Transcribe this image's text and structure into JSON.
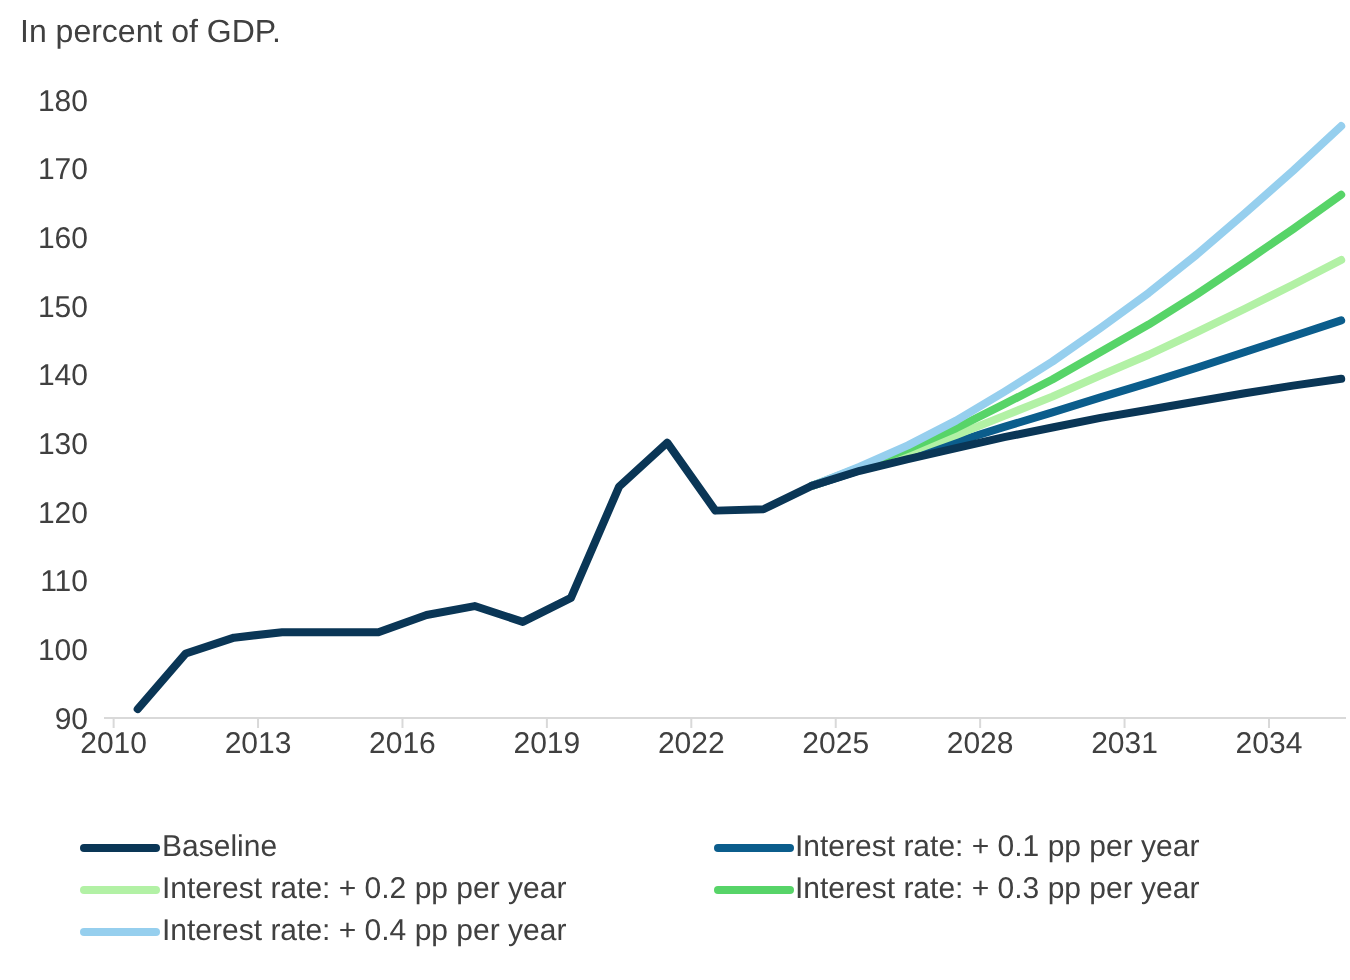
{
  "chart_data": {
    "type": "line",
    "ylabel": "In percent of GDP.",
    "xlim": [
      2009.8,
      2035.6
    ],
    "xticks": [
      2010,
      2013,
      2016,
      2019,
      2022,
      2025,
      2028,
      2031,
      2034
    ],
    "ylim": [
      90,
      180
    ],
    "yticks": [
      90,
      100,
      110,
      120,
      130,
      140,
      150,
      160,
      170,
      180
    ],
    "grid": false,
    "legend": "bottom",
    "marker": "none",
    "line_style": "solid",
    "series": [
      {
        "name": "Interest rate: + 0.1 pp per year",
        "color": "#0b5d8c",
        "x": [
          2024.5,
          2025.5,
          2026.5,
          2027.5,
          2028.5,
          2029.5,
          2030.5,
          2031.5,
          2032.5,
          2033.5,
          2034.5,
          2035.5
        ],
        "values": [
          123.8,
          126.1,
          128.2,
          130.2,
          132.4,
          134.5,
          136.7,
          138.8,
          141.0,
          143.3,
          145.6,
          147.9
        ]
      },
      {
        "name": "Interest rate: + 0.2 pp per year",
        "color": "#b2f1a5",
        "x": [
          2024.5,
          2025.5,
          2026.5,
          2027.5,
          2028.5,
          2029.5,
          2030.5,
          2031.5,
          2032.5,
          2033.5,
          2034.5,
          2035.5
        ],
        "values": [
          123.8,
          126.3,
          128.7,
          131.2,
          134.0,
          136.8,
          139.9,
          142.9,
          146.2,
          149.6,
          153.1,
          156.7
        ]
      },
      {
        "name": "Interest rate: + 0.3 pp per year",
        "color": "#57d468",
        "x": [
          2024.5,
          2025.5,
          2026.5,
          2027.5,
          2028.5,
          2029.5,
          2030.5,
          2031.5,
          2032.5,
          2033.5,
          2034.5,
          2035.5
        ],
        "values": [
          123.8,
          126.5,
          129.2,
          132.2,
          135.7,
          139.3,
          143.3,
          147.3,
          151.7,
          156.4,
          161.2,
          166.2
        ]
      },
      {
        "name": "Interest rate: + 0.4 pp per year",
        "color": "#96cfee",
        "x": [
          2024.5,
          2025.5,
          2026.5,
          2027.5,
          2028.5,
          2029.5,
          2030.5,
          2031.5,
          2032.5,
          2033.5,
          2034.5,
          2035.5
        ],
        "values": [
          123.8,
          126.6,
          129.7,
          133.3,
          137.5,
          141.9,
          146.8,
          151.9,
          157.5,
          163.5,
          169.7,
          176.2
        ]
      },
      {
        "name": "Baseline",
        "color": "#0a3656",
        "x": [
          2010.5,
          2011.5,
          2012.5,
          2013.5,
          2014.5,
          2015.5,
          2016.5,
          2017.5,
          2018.5,
          2019.5,
          2020.5,
          2021.5,
          2022.5,
          2023.5,
          2024.5,
          2025.5,
          2026.5,
          2027.5,
          2028.5,
          2029.5,
          2030.5,
          2031.5,
          2032.5,
          2033.5,
          2034.5,
          2035.5
        ],
        "values": [
          91.3,
          99.4,
          101.7,
          102.5,
          102.5,
          102.5,
          105.0,
          106.3,
          104.0,
          107.5,
          123.7,
          130.1,
          120.2,
          120.4,
          123.8,
          126.0,
          127.7,
          129.3,
          130.9,
          132.3,
          133.7,
          134.9,
          136.1,
          137.3,
          138.4,
          139.4
        ]
      }
    ]
  }
}
